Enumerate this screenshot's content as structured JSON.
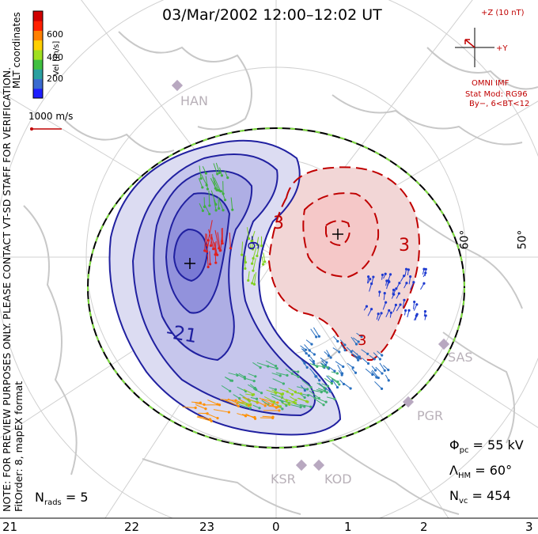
{
  "header": {
    "title": "03/Mar/2002 12:00–12:02 UT",
    "coordinates": "MLT coordinates"
  },
  "velocity_legend": {
    "label": "Vel [m/s]",
    "ticks": [
      "600",
      "400",
      "200"
    ],
    "colors": [
      "#1e1eff",
      "#3a6bd0",
      "#2aa0a0",
      "#40c040",
      "#a0e020",
      "#ffd000",
      "#ff8000",
      "#ff2000",
      "#d00000"
    ],
    "ref_vector_label": "1000 m/s"
  },
  "side_notes": {
    "line1": "NOTE: FOR PREVIEW PURPOSES ONLY. PLEASE CONTACT VT-SD STAFF FOR VERIFICATION.",
    "line2": "FitOrder: 8, mapEX format"
  },
  "imf": {
    "z_label": "+Z (10 nT)",
    "y_label": "+Y",
    "source": "OMNI IMF",
    "model_line1": "Stat Mod: RG96",
    "model_line2": "By−, 6<BT<12"
  },
  "contour_labels": [
    "-21",
    "-6",
    "3",
    "3",
    "3"
  ],
  "latitude_labels": [
    "60°",
    "50°"
  ],
  "stations": [
    "HAN",
    "SAS",
    "PGR",
    "KSR",
    "KOD"
  ],
  "stats": {
    "phi_pc": "55 kV",
    "lambda_hm": "60°",
    "n_vc": "454",
    "n_rads": "5"
  },
  "stats_labels": {
    "phi_symbol": "Φ",
    "phi_sub": "pc",
    "lambda_symbol": "Λ",
    "lambda_sub": "HM",
    "nvc_symbol": "N",
    "nvc_sub": "vc",
    "nrads_symbol": "N",
    "nrads_sub": "rads"
  },
  "mlt_axis": [
    "21",
    "22",
    "23",
    "0",
    "1",
    "2",
    "3"
  ],
  "colors": {
    "negative_cell": "#2020a0",
    "positive_cell": "#c00000",
    "hmb": "#000000",
    "hmb_dash": "#80e040",
    "coast": "#c8c8c8"
  }
}
